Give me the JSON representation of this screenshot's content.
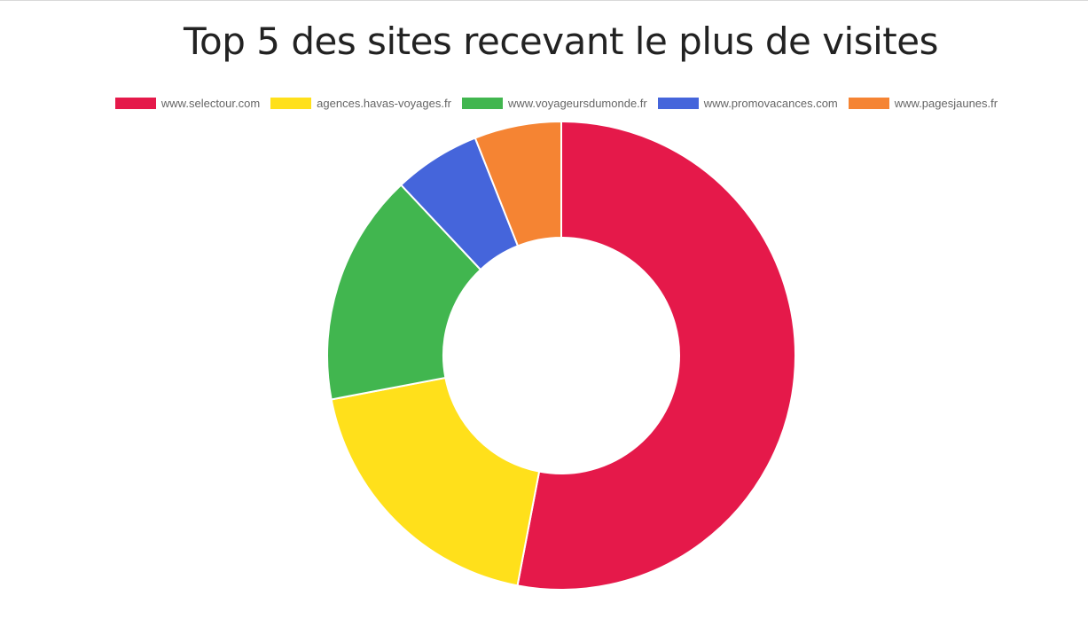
{
  "chart_data": {
    "type": "doughnut",
    "title": "Top 5 des sites recevant le plus de visites",
    "legend_position": "top",
    "categories": [
      "www.selectour.com",
      "agences.havas-voyages.fr",
      "www.voyageursdumonde.fr",
      "www.promovacances.com",
      "www.pagesjaunes.fr"
    ],
    "values": [
      53,
      19,
      16,
      6,
      6
    ],
    "colors": [
      "#e5194a",
      "#ffe01b",
      "#41b64f",
      "#4565db",
      "#f58433"
    ]
  }
}
